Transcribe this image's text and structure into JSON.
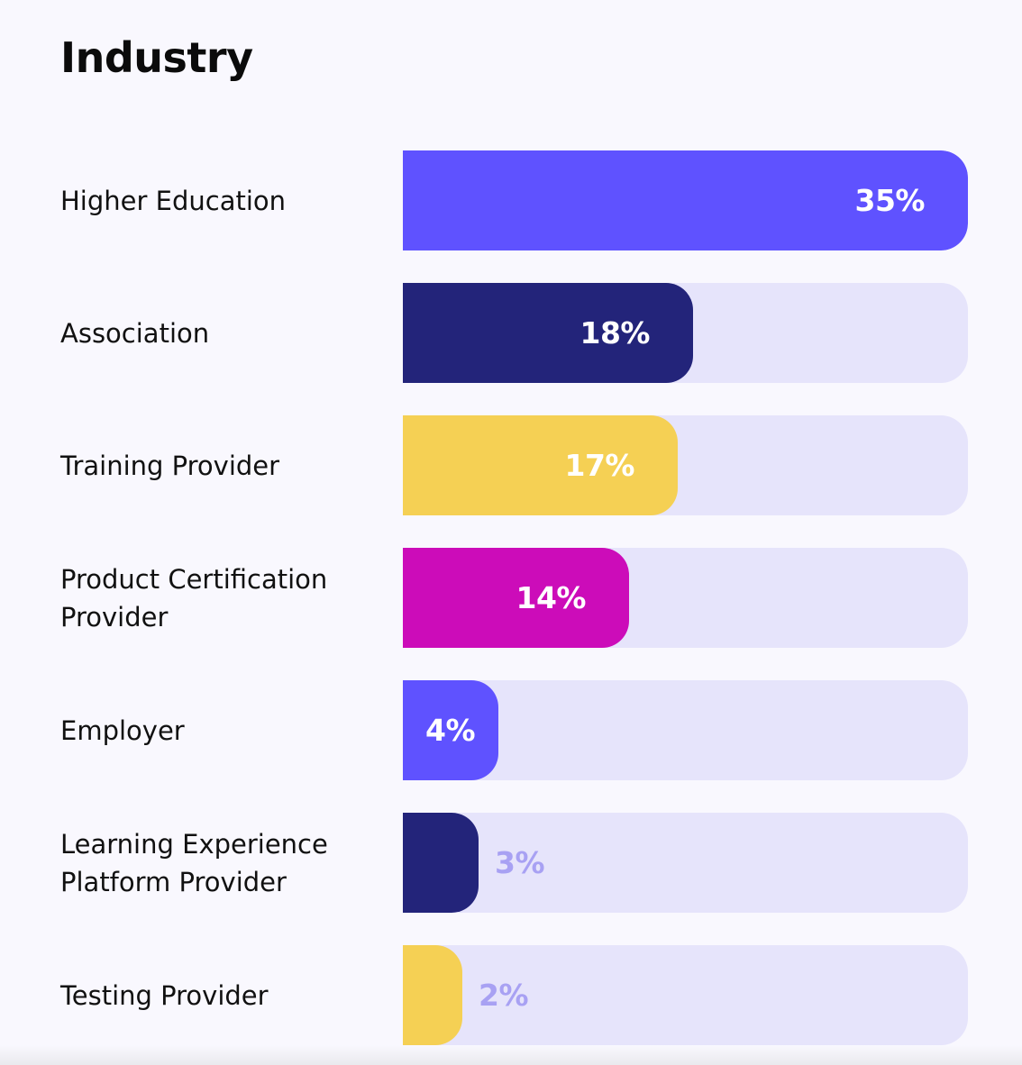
{
  "chart_data": {
    "type": "bar",
    "orientation": "horizontal",
    "title": "Industry",
    "xlabel": "",
    "ylabel": "",
    "xlim": [
      0,
      35
    ],
    "grid": false,
    "legend": "none",
    "value_labels": [
      "35%",
      "18%",
      "17%",
      "14%",
      "4%",
      "3%",
      "2%"
    ],
    "categories": [
      "Higher Education",
      "Association",
      "Training Provider",
      "Product Certification Provider",
      "Employer",
      "Learning Experience Platform Provider",
      "Testing Provider"
    ],
    "values": [
      35,
      18,
      17,
      14,
      4,
      3,
      2
    ],
    "colors": [
      "#5f52ff",
      "#23247a",
      "#f5d054",
      "#cc0cb9",
      "#5f52ff",
      "#23247a",
      "#f5d054"
    ],
    "track_color": "#e6e4fb",
    "outside_label_color": "#a8a1f3"
  }
}
